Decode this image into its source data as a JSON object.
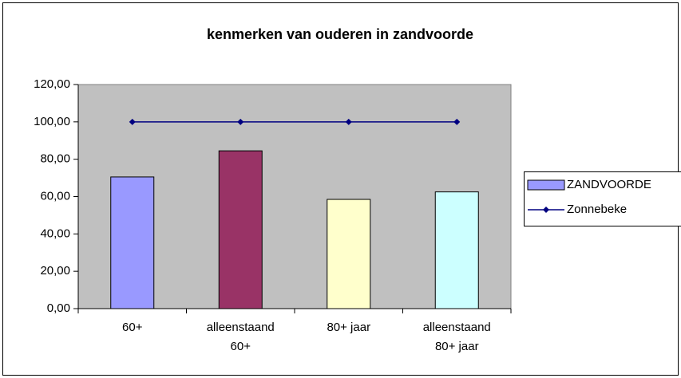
{
  "chart_data": {
    "type": "bar_line",
    "title": "kenmerken van ouderen in zandvoorde",
    "categories": [
      "60+",
      "alleenstaand 60+",
      "80+ jaar",
      "alleenstaand 80+ jaar"
    ],
    "series": [
      {
        "name": "ZANDVOORDE",
        "type": "bar",
        "colors": [
          "#9999ff",
          "#993366",
          "#ffffcc",
          "#ccffff"
        ],
        "values": [
          70.5,
          84.5,
          58.5,
          62.5
        ]
      },
      {
        "name": "Zonnebeke",
        "type": "line",
        "color": "#000080",
        "values": [
          100,
          100,
          100,
          100
        ]
      }
    ],
    "ylim": [
      0,
      120
    ],
    "yticks": [
      {
        "value": 0,
        "label": "0,00"
      },
      {
        "value": 20,
        "label": "20,00"
      },
      {
        "value": 40,
        "label": "40,00"
      },
      {
        "value": 60,
        "label": "60,00"
      },
      {
        "value": 80,
        "label": "80,00"
      },
      {
        "value": 100,
        "label": "100,00"
      },
      {
        "value": 120,
        "label": "120,00"
      }
    ],
    "grid": false,
    "legend": "right"
  }
}
